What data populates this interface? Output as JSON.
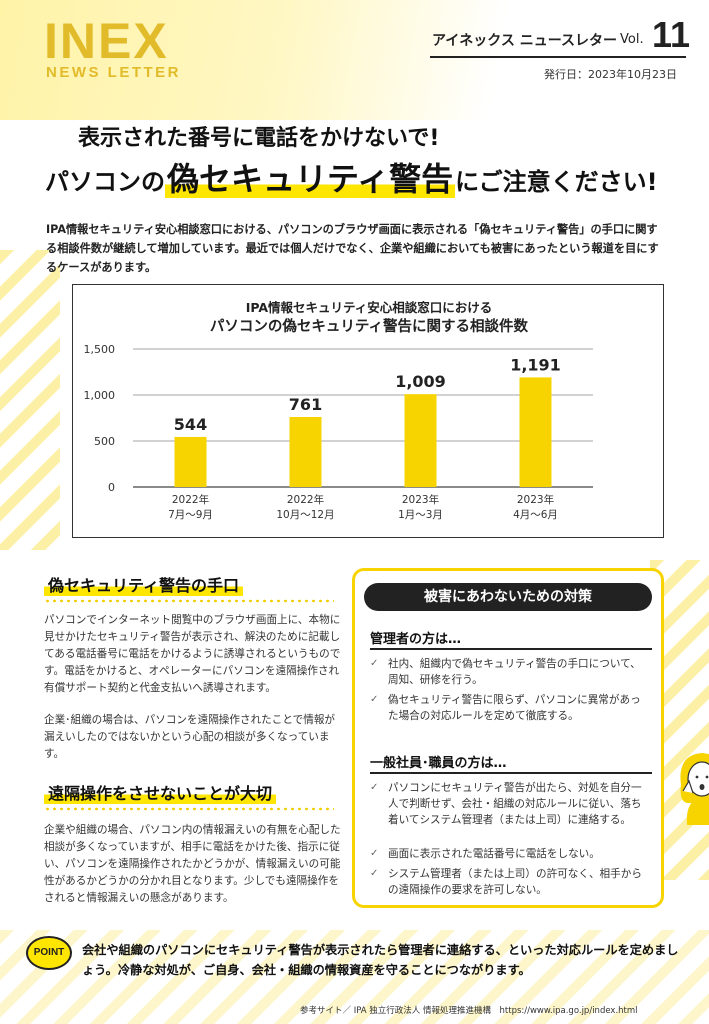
{
  "header": {
    "logo_main": "INEX",
    "logo_sub": "NEWS LETTER",
    "newsletter_label": "アイネックス ニュースレター",
    "vol_label": "Vol.",
    "vol_number": "11",
    "issue_date": "発行日：2023年10月23日"
  },
  "headline": {
    "line1": "表示された番号に電話をかけないで!",
    "line2_pre": "パソコンの",
    "line2_highlight": "偽セキュリティ警告",
    "line2_post": "にご注意ください!"
  },
  "intro": "IPA情報セキュリティ安心相談窓口における、パソコンのブラウザ画面に表示される「偽セキュリティ警告」の手口に関する相談件数が継続して増加しています。最近では個人だけでなく、企業や組織においても被害にあったという報道を目にするケースがあります。",
  "chart_data": {
    "type": "bar",
    "title_line1": "IPA情報セキュリティ安心相談窓口における",
    "title_line2": "パソコンの偽セキュリティ警告に関する相談件数",
    "categories": [
      [
        "2022年",
        "7月～9月"
      ],
      [
        "2022年",
        "10月～12月"
      ],
      [
        "2023年",
        "1月～3月"
      ],
      [
        "2023年",
        "4月～6月"
      ]
    ],
    "values": [
      544,
      761,
      1009,
      1191
    ],
    "value_labels": [
      "544",
      "761",
      "1,009",
      "1,191"
    ],
    "y_ticks": [
      0,
      500,
      1000,
      1500
    ],
    "y_tick_labels": [
      "0",
      "500",
      "1,000",
      "1,500"
    ],
    "ylim": [
      0,
      1500
    ],
    "grid": true,
    "bar_color": "#f7d400"
  },
  "section1": {
    "heading": "偽セキュリティ警告の手口",
    "para1": "パソコンでインターネット閲覧中のブラウザ画面上に、本物に見せかけたセキュリティ警告が表示され、解決のために記載してある電話番号に電話をかけるように誘導されるというものです。電話をかけると、オペレーターにパソコンを遠隔操作され有償サポート契約と代金支払いへ誘導されます。",
    "para2": "企業･組織の場合は、パソコンを遠隔操作されたことで情報が漏えいしたのではないかという心配の相談が多くなっています。"
  },
  "section2": {
    "heading": "遠隔操作をさせないことが大切",
    "para": "企業や組織の場合、パソコン内の情報漏えいの有無を心配した相談が多くなっていますが、相手に電話をかけた後、指示に従い、パソコンを遠隔操作されたかどうかが、情報漏えいの可能性があるかどうかの分かれ目となります。少しでも遠隔操作をされると情報漏えいの懸念があります。"
  },
  "measures": {
    "title": "被害にあわないための対策",
    "check_icon": "check-icon",
    "admin_heading": "管理者の方は…",
    "admin_items": [
      "社内、組織内で偽セキュリティ警告の手口について、周知、研修を行う。",
      "偽セキュリティ警告に限らず、パソコンに異常があった場合の対応ルールを定めて徹底する。"
    ],
    "staff_heading": "一般社員･職員の方は…",
    "staff_items": [
      "パソコンにセキュリティ警告が出たら、対処を自分一人で判断せず、会社・組織の対応ルールに従い、落ち着いてシステム管理者（または上司）に連絡する。",
      "画面に表示された電話番号に電話をしない。",
      "システム管理者（または上司）の許可なく、相手からの遠隔操作の要求を許可しない。"
    ]
  },
  "point": {
    "badge": "POINT",
    "text": "会社や組織のパソコンにセキュリティ警告が表示されたら管理者に連絡する、といった対応ルールを定めましょう。冷静な対処が、ご自身、会社・組織の情報資産を守ることにつながります。"
  },
  "footer": {
    "reference": "参考サイト／ IPA 独立行政法人 情報処理推進機構　https://www.ipa.go.jp/index.html"
  },
  "colors": {
    "accent": "#f7d400",
    "logo": "#e2bb2a",
    "dark": "#222222"
  }
}
